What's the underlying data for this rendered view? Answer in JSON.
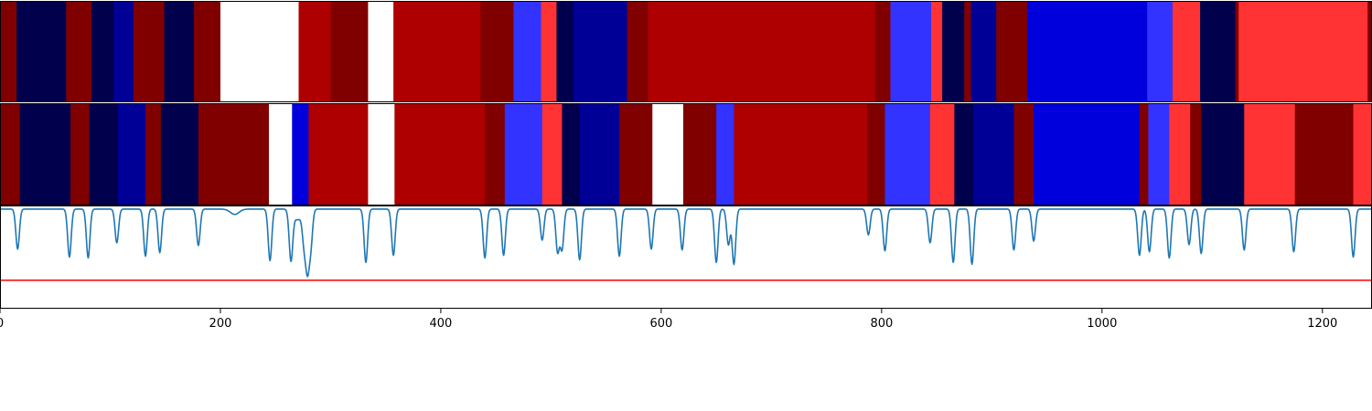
{
  "chart_data": [
    {
      "type": "heatmap",
      "xlim": [
        0,
        1245
      ],
      "segments": [
        {
          "x0": 0,
          "x1": 15,
          "color": "#800000"
        },
        {
          "x0": 15,
          "x1": 60,
          "color": "#00004d"
        },
        {
          "x0": 60,
          "x1": 83,
          "color": "#800000"
        },
        {
          "x0": 83,
          "x1": 103,
          "color": "#00004d"
        },
        {
          "x0": 103,
          "x1": 121,
          "color": "#000096"
        },
        {
          "x0": 121,
          "x1": 149,
          "color": "#800000"
        },
        {
          "x0": 149,
          "x1": 176,
          "color": "#00004d"
        },
        {
          "x0": 176,
          "x1": 200,
          "color": "#800000"
        },
        {
          "x0": 200,
          "x1": 271,
          "color": "#ffffff"
        },
        {
          "x0": 271,
          "x1": 300,
          "color": "#ae0000"
        },
        {
          "x0": 300,
          "x1": 334,
          "color": "#800000"
        },
        {
          "x0": 334,
          "x1": 357,
          "color": "#ffffff"
        },
        {
          "x0": 357,
          "x1": 436,
          "color": "#ae0000"
        },
        {
          "x0": 436,
          "x1": 466,
          "color": "#800000"
        },
        {
          "x0": 466,
          "x1": 491,
          "color": "#3333ff"
        },
        {
          "x0": 491,
          "x1": 505,
          "color": "#ff3333"
        },
        {
          "x0": 505,
          "x1": 520,
          "color": "#00004d"
        },
        {
          "x0": 520,
          "x1": 569,
          "color": "#000096"
        },
        {
          "x0": 569,
          "x1": 588,
          "color": "#800000"
        },
        {
          "x0": 588,
          "x1": 794,
          "color": "#ae0000"
        },
        {
          "x0": 794,
          "x1": 808,
          "color": "#800000"
        },
        {
          "x0": 808,
          "x1": 845,
          "color": "#3333ff"
        },
        {
          "x0": 845,
          "x1": 855,
          "color": "#ff3333"
        },
        {
          "x0": 855,
          "x1": 875,
          "color": "#00004d"
        },
        {
          "x0": 875,
          "x1": 881,
          "color": "#800000"
        },
        {
          "x0": 881,
          "x1": 904,
          "color": "#000096"
        },
        {
          "x0": 904,
          "x1": 932,
          "color": "#800000"
        },
        {
          "x0": 932,
          "x1": 1041,
          "color": "#0000dd"
        },
        {
          "x0": 1041,
          "x1": 1064,
          "color": "#3333ff"
        },
        {
          "x0": 1064,
          "x1": 1089,
          "color": "#ff3333"
        },
        {
          "x0": 1089,
          "x1": 1121,
          "color": "#00004d"
        },
        {
          "x0": 1121,
          "x1": 1124,
          "color": "#800000"
        },
        {
          "x0": 1124,
          "x1": 1241,
          "color": "#ff3333"
        },
        {
          "x0": 1241,
          "x1": 1245,
          "color": "#800000"
        }
      ]
    },
    {
      "type": "heatmap",
      "xlim": [
        0,
        1245
      ],
      "segments": [
        {
          "x0": 0,
          "x1": 18,
          "color": "#800000"
        },
        {
          "x0": 18,
          "x1": 64,
          "color": "#00004d"
        },
        {
          "x0": 64,
          "x1": 81,
          "color": "#800000"
        },
        {
          "x0": 81,
          "x1": 107,
          "color": "#00004d"
        },
        {
          "x0": 107,
          "x1": 132,
          "color": "#000096"
        },
        {
          "x0": 132,
          "x1": 146,
          "color": "#800000"
        },
        {
          "x0": 146,
          "x1": 180,
          "color": "#00004d"
        },
        {
          "x0": 180,
          "x1": 244,
          "color": "#800000"
        },
        {
          "x0": 244,
          "x1": 265,
          "color": "#ffffff"
        },
        {
          "x0": 265,
          "x1": 280,
          "color": "#0000dd"
        },
        {
          "x0": 280,
          "x1": 334,
          "color": "#ae0000"
        },
        {
          "x0": 334,
          "x1": 358,
          "color": "#ffffff"
        },
        {
          "x0": 358,
          "x1": 440,
          "color": "#ae0000"
        },
        {
          "x0": 440,
          "x1": 458,
          "color": "#800000"
        },
        {
          "x0": 458,
          "x1": 492,
          "color": "#3333ff"
        },
        {
          "x0": 492,
          "x1": 510,
          "color": "#ff3333"
        },
        {
          "x0": 510,
          "x1": 526,
          "color": "#00004d"
        },
        {
          "x0": 526,
          "x1": 562,
          "color": "#000096"
        },
        {
          "x0": 562,
          "x1": 592,
          "color": "#800000"
        },
        {
          "x0": 592,
          "x1": 620,
          "color": "#ffffff"
        },
        {
          "x0": 620,
          "x1": 650,
          "color": "#800000"
        },
        {
          "x0": 650,
          "x1": 666,
          "color": "#3333ff"
        },
        {
          "x0": 666,
          "x1": 787,
          "color": "#ae0000"
        },
        {
          "x0": 787,
          "x1": 803,
          "color": "#800000"
        },
        {
          "x0": 803,
          "x1": 844,
          "color": "#3333ff"
        },
        {
          "x0": 844,
          "x1": 866,
          "color": "#ff3333"
        },
        {
          "x0": 866,
          "x1": 883,
          "color": "#00004d"
        },
        {
          "x0": 883,
          "x1": 920,
          "color": "#000096"
        },
        {
          "x0": 920,
          "x1": 938,
          "color": "#800000"
        },
        {
          "x0": 938,
          "x1": 1034,
          "color": "#0000dd"
        },
        {
          "x0": 1034,
          "x1": 1042,
          "color": "#800000"
        },
        {
          "x0": 1042,
          "x1": 1061,
          "color": "#3333ff"
        },
        {
          "x0": 1061,
          "x1": 1080,
          "color": "#ff3333"
        },
        {
          "x0": 1080,
          "x1": 1090,
          "color": "#800000"
        },
        {
          "x0": 1090,
          "x1": 1129,
          "color": "#00004d"
        },
        {
          "x0": 1129,
          "x1": 1175,
          "color": "#ff3333"
        },
        {
          "x0": 1175,
          "x1": 1228,
          "color": "#800000"
        },
        {
          "x0": 1228,
          "x1": 1245,
          "color": "#ff3333"
        }
      ]
    },
    {
      "type": "line",
      "xlim": [
        0,
        1245
      ],
      "ylim": [
        -1.12,
        0.04
      ],
      "threshold": {
        "y": -0.8,
        "color": "#ff0000"
      },
      "line_color": "#1f77b4",
      "baseline": 0,
      "x_ticks": [
        "0",
        "200",
        "400",
        "600",
        "800",
        "1000",
        "1200"
      ],
      "x_tick_values": [
        0,
        200,
        400,
        600,
        800,
        1000,
        1200
      ],
      "dips": [
        {
          "x": 16,
          "depth": 0.45
        },
        {
          "x": 63,
          "depth": 0.54
        },
        {
          "x": 80,
          "depth": 0.55
        },
        {
          "x": 106,
          "depth": 0.38
        },
        {
          "x": 132,
          "depth": 0.53
        },
        {
          "x": 145,
          "depth": 0.49
        },
        {
          "x": 180,
          "depth": 0.41
        },
        {
          "x": 213,
          "depth": 0.06,
          "width": 4
        },
        {
          "x": 245,
          "depth": 0.58
        },
        {
          "x": 264,
          "depth": 0.55
        },
        {
          "x": 270,
          "depth": 0.12,
          "width": 4
        },
        {
          "x": 276,
          "depth": 0.35
        },
        {
          "x": 279,
          "depth": 0.62
        },
        {
          "x": 282,
          "depth": 0.4
        },
        {
          "x": 332,
          "depth": 0.6
        },
        {
          "x": 357,
          "depth": 0.52
        },
        {
          "x": 440,
          "depth": 0.55
        },
        {
          "x": 457,
          "depth": 0.52
        },
        {
          "x": 492,
          "depth": 0.35
        },
        {
          "x": 506,
          "depth": 0.48
        },
        {
          "x": 510,
          "depth": 0.45
        },
        {
          "x": 526,
          "depth": 0.57
        },
        {
          "x": 562,
          "depth": 0.53
        },
        {
          "x": 591,
          "depth": 0.45
        },
        {
          "x": 619,
          "depth": 0.46
        },
        {
          "x": 650,
          "depth": 0.6
        },
        {
          "x": 661,
          "depth": 0.4
        },
        {
          "x": 666,
          "depth": 0.62
        },
        {
          "x": 788,
          "depth": 0.29
        },
        {
          "x": 803,
          "depth": 0.47
        },
        {
          "x": 844,
          "depth": 0.38
        },
        {
          "x": 865,
          "depth": 0.6
        },
        {
          "x": 882,
          "depth": 0.62
        },
        {
          "x": 920,
          "depth": 0.46
        },
        {
          "x": 938,
          "depth": 0.36
        },
        {
          "x": 1034,
          "depth": 0.52
        },
        {
          "x": 1043,
          "depth": 0.48
        },
        {
          "x": 1061,
          "depth": 0.55
        },
        {
          "x": 1079,
          "depth": 0.4
        },
        {
          "x": 1090,
          "depth": 0.5
        },
        {
          "x": 1129,
          "depth": 0.46
        },
        {
          "x": 1174,
          "depth": 0.48
        },
        {
          "x": 1228,
          "depth": 0.54
        }
      ]
    }
  ]
}
